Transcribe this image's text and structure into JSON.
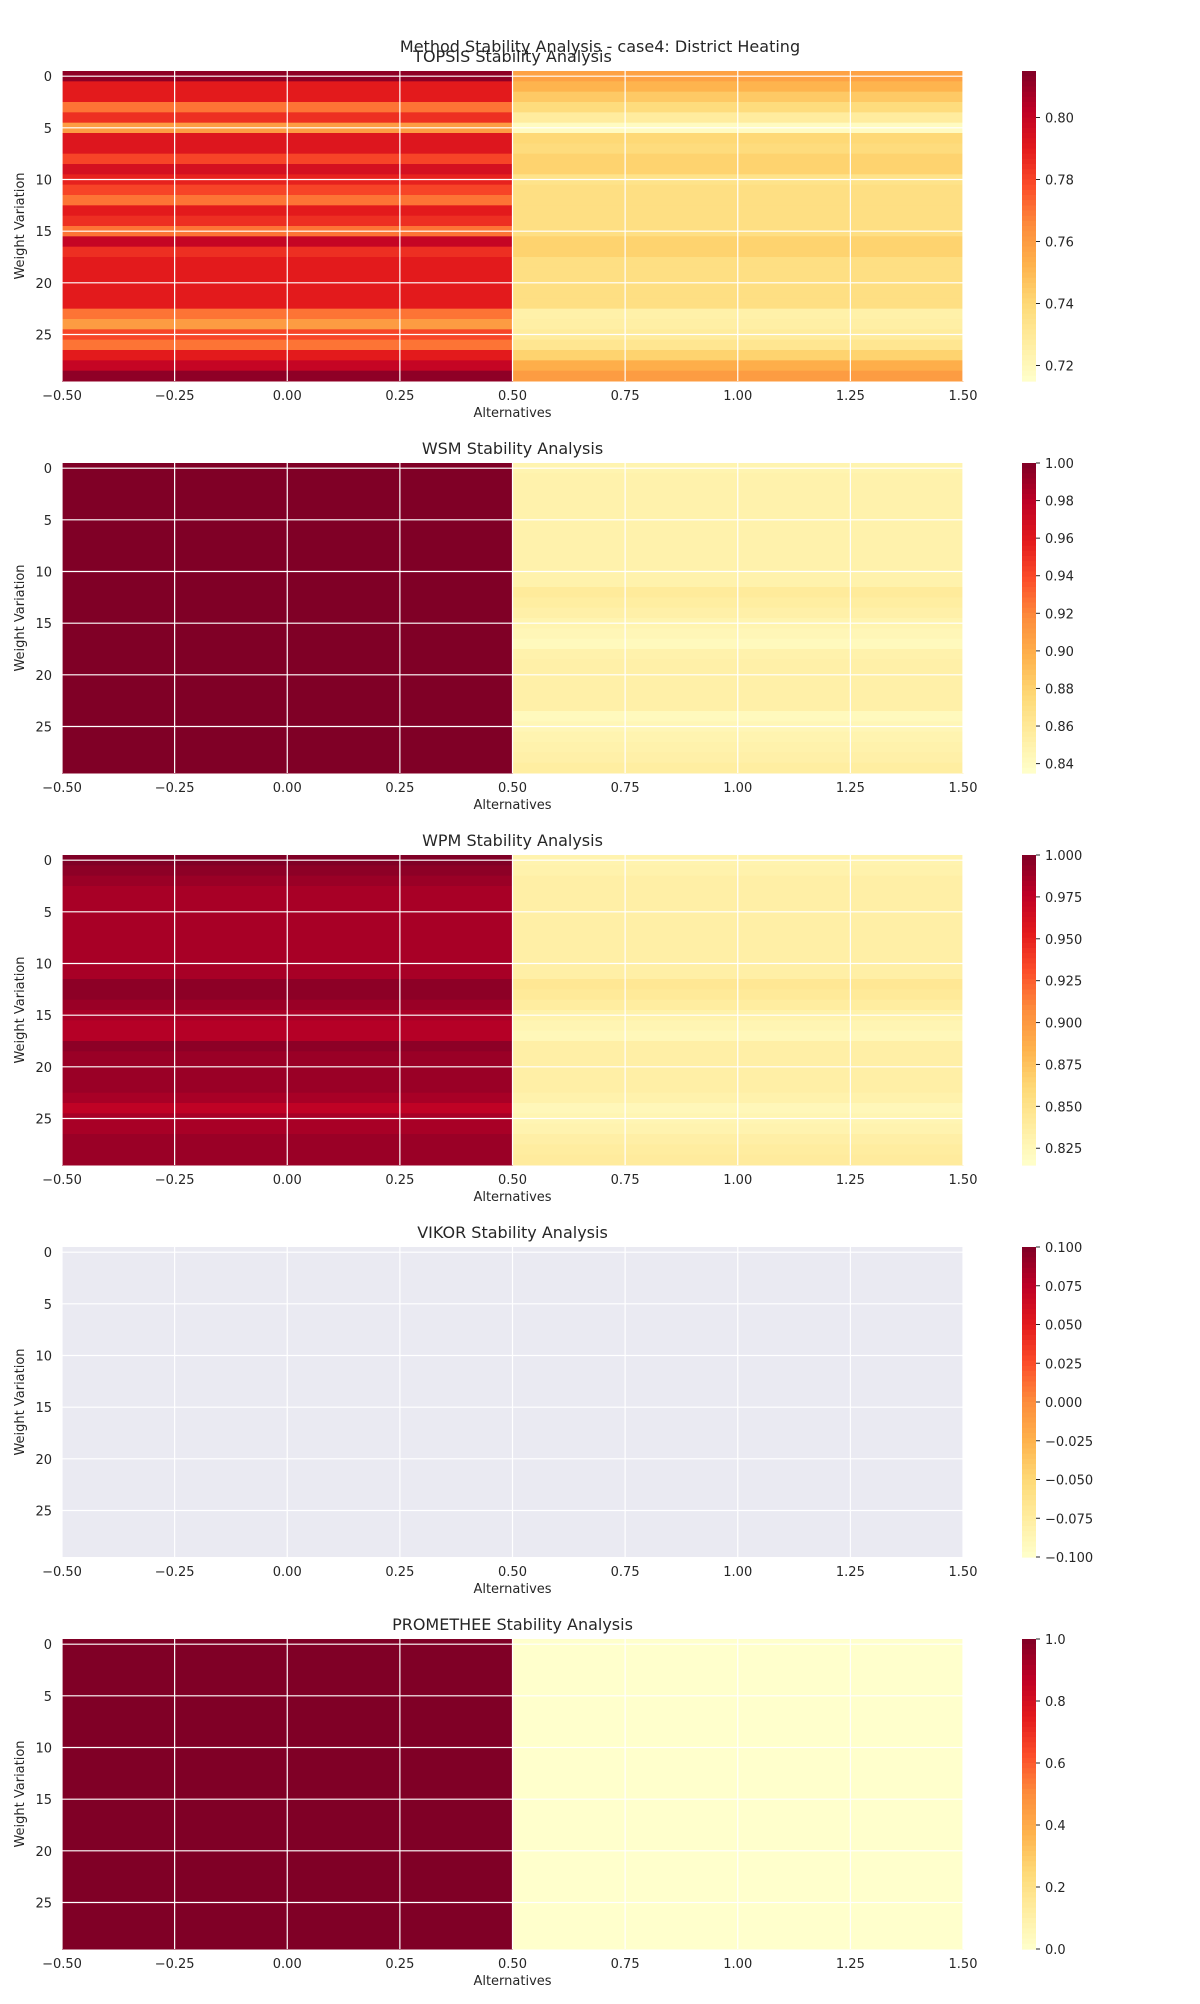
{
  "figure": {
    "suptitle": "Method Stability Analysis - case4: District Heating"
  },
  "chart_data": [
    {
      "type": "heatmap",
      "title": "TOPSIS Stability Analysis",
      "xlabel": "Alternatives",
      "ylabel": "Weight Variation",
      "xlim": [
        -0.5,
        1.5
      ],
      "ylim": [
        29.5,
        -0.5
      ],
      "xticks": [
        "−0.50",
        "−0.25",
        "0.00",
        "0.25",
        "0.50",
        "0.75",
        "1.00",
        "1.25",
        "1.50"
      ],
      "yticks": [
        "0",
        "5",
        "10",
        "15",
        "20",
        "25"
      ],
      "grid": true,
      "colormap": "YlOrRd",
      "colorbar": {
        "range": [
          0.715,
          0.815
        ],
        "ticks": [
          0.72,
          0.74,
          0.76,
          0.78,
          0.8
        ],
        "tick_labels": [
          "0.72",
          "0.74",
          "0.76",
          "0.78",
          "0.80"
        ]
      },
      "values": [
        [
          0.812,
          0.758
        ],
        [
          0.79,
          0.752
        ],
        [
          0.79,
          0.745
        ],
        [
          0.77,
          0.738
        ],
        [
          0.785,
          0.728
        ],
        [
          0.76,
          0.718
        ],
        [
          0.792,
          0.74
        ],
        [
          0.792,
          0.738
        ],
        [
          0.78,
          0.742
        ],
        [
          0.795,
          0.742
        ],
        [
          0.788,
          0.734
        ],
        [
          0.78,
          0.736
        ],
        [
          0.77,
          0.736
        ],
        [
          0.79,
          0.736
        ],
        [
          0.785,
          0.736
        ],
        [
          0.77,
          0.736
        ],
        [
          0.8,
          0.742
        ],
        [
          0.785,
          0.742
        ],
        [
          0.79,
          0.736
        ],
        [
          0.79,
          0.736
        ],
        [
          0.79,
          0.736
        ],
        [
          0.79,
          0.736
        ],
        [
          0.79,
          0.736
        ],
        [
          0.77,
          0.725
        ],
        [
          0.76,
          0.726
        ],
        [
          0.78,
          0.728
        ],
        [
          0.77,
          0.732
        ],
        [
          0.79,
          0.742
        ],
        [
          0.8,
          0.754
        ],
        [
          0.812,
          0.76
        ]
      ]
    },
    {
      "type": "heatmap",
      "title": "WSM Stability Analysis",
      "xlabel": "Alternatives",
      "ylabel": "Weight Variation",
      "xlim": [
        -0.5,
        1.5
      ],
      "ylim": [
        29.5,
        -0.5
      ],
      "xticks": [
        "−0.50",
        "−0.25",
        "0.00",
        "0.25",
        "0.50",
        "0.75",
        "1.00",
        "1.25",
        "1.50"
      ],
      "yticks": [
        "0",
        "5",
        "10",
        "15",
        "20",
        "25"
      ],
      "grid": true,
      "colormap": "YlOrRd",
      "colorbar": {
        "range": [
          0.835,
          1.0
        ],
        "ticks": [
          0.84,
          0.86,
          0.88,
          0.9,
          0.92,
          0.94,
          0.96,
          0.98,
          1.0
        ],
        "tick_labels": [
          "0.84",
          "0.86",
          "0.88",
          "0.90",
          "0.92",
          "0.94",
          "0.96",
          "0.98",
          "1.00"
        ]
      },
      "values": [
        [
          1.0,
          0.848
        ],
        [
          1.0,
          0.85
        ],
        [
          1.0,
          0.85
        ],
        [
          1.0,
          0.85
        ],
        [
          1.0,
          0.85
        ],
        [
          1.0,
          0.85
        ],
        [
          1.0,
          0.85
        ],
        [
          1.0,
          0.85
        ],
        [
          1.0,
          0.85
        ],
        [
          1.0,
          0.85
        ],
        [
          1.0,
          0.85
        ],
        [
          1.0,
          0.85
        ],
        [
          1.0,
          0.858
        ],
        [
          1.0,
          0.855
        ],
        [
          1.0,
          0.852
        ],
        [
          1.0,
          0.848
        ],
        [
          1.0,
          0.845
        ],
        [
          1.0,
          0.842
        ],
        [
          1.0,
          0.85
        ],
        [
          1.0,
          0.852
        ],
        [
          1.0,
          0.852
        ],
        [
          1.0,
          0.852
        ],
        [
          1.0,
          0.852
        ],
        [
          1.0,
          0.852
        ],
        [
          1.0,
          0.842
        ],
        [
          1.0,
          0.845
        ],
        [
          1.0,
          0.848
        ],
        [
          1.0,
          0.85
        ],
        [
          1.0,
          0.852
        ],
        [
          1.0,
          0.855
        ]
      ]
    },
    {
      "type": "heatmap",
      "title": "WPM Stability Analysis",
      "xlabel": "Alternatives",
      "ylabel": "Weight Variation",
      "xlim": [
        -0.5,
        1.5
      ],
      "ylim": [
        29.5,
        -0.5
      ],
      "xticks": [
        "−0.50",
        "−0.25",
        "0.00",
        "0.25",
        "0.50",
        "0.75",
        "1.00",
        "1.25",
        "1.50"
      ],
      "yticks": [
        "0",
        "5",
        "10",
        "15",
        "20",
        "25"
      ],
      "grid": true,
      "colormap": "YlOrRd",
      "colorbar": {
        "range": [
          0.815,
          1.0
        ],
        "ticks": [
          0.825,
          0.85,
          0.875,
          0.9,
          0.925,
          0.95,
          0.975,
          1.0
        ],
        "tick_labels": [
          "0.825",
          "0.850",
          "0.875",
          "0.900",
          "0.925",
          "0.950",
          "0.975",
          "1.000"
        ]
      },
      "values": [
        [
          1.0,
          0.83
        ],
        [
          0.995,
          0.832
        ],
        [
          0.99,
          0.835
        ],
        [
          0.985,
          0.835
        ],
        [
          0.985,
          0.835
        ],
        [
          0.985,
          0.835
        ],
        [
          0.985,
          0.835
        ],
        [
          0.985,
          0.835
        ],
        [
          0.985,
          0.835
        ],
        [
          0.985,
          0.835
        ],
        [
          0.985,
          0.835
        ],
        [
          0.985,
          0.835
        ],
        [
          0.995,
          0.845
        ],
        [
          0.995,
          0.842
        ],
        [
          0.99,
          0.838
        ],
        [
          0.985,
          0.832
        ],
        [
          0.98,
          0.828
        ],
        [
          0.98,
          0.825
        ],
        [
          0.995,
          0.835
        ],
        [
          0.99,
          0.835
        ],
        [
          0.99,
          0.835
        ],
        [
          0.99,
          0.835
        ],
        [
          0.99,
          0.835
        ],
        [
          0.985,
          0.832
        ],
        [
          0.975,
          0.825
        ],
        [
          0.985,
          0.828
        ],
        [
          0.985,
          0.83
        ],
        [
          0.99,
          0.835
        ],
        [
          0.99,
          0.838
        ],
        [
          0.99,
          0.84
        ]
      ]
    },
    {
      "type": "heatmap",
      "title": "VIKOR Stability Analysis",
      "xlabel": "Alternatives",
      "ylabel": "Weight Variation",
      "xlim": [
        -0.5,
        1.5
      ],
      "ylim": [
        29.5,
        -0.5
      ],
      "xticks": [
        "−0.50",
        "−0.25",
        "0.00",
        "0.25",
        "0.50",
        "0.75",
        "1.00",
        "1.25",
        "1.50"
      ],
      "yticks": [
        "0",
        "5",
        "10",
        "15",
        "20",
        "25"
      ],
      "grid": true,
      "colormap": "YlOrRd",
      "colorbar": {
        "range": [
          -0.1,
          0.1
        ],
        "ticks": [
          -0.1,
          -0.075,
          -0.05,
          -0.025,
          0.0,
          0.025,
          0.05,
          0.075,
          0.1
        ],
        "tick_labels": [
          "−0.100",
          "−0.075",
          "−0.050",
          "−0.025",
          "0.000",
          "0.025",
          "0.050",
          "0.075",
          "0.100"
        ]
      },
      "values": []
    },
    {
      "type": "heatmap",
      "title": "PROMETHEE Stability Analysis",
      "xlabel": "Alternatives",
      "ylabel": "Weight Variation",
      "xlim": [
        -0.5,
        1.5
      ],
      "ylim": [
        29.5,
        -0.5
      ],
      "xticks": [
        "−0.50",
        "−0.25",
        "0.00",
        "0.25",
        "0.50",
        "0.75",
        "1.00",
        "1.25",
        "1.50"
      ],
      "yticks": [
        "0",
        "5",
        "10",
        "15",
        "20",
        "25"
      ],
      "grid": true,
      "colormap": "YlOrRd",
      "colorbar": {
        "range": [
          0.0,
          1.0
        ],
        "ticks": [
          0.0,
          0.2,
          0.4,
          0.6,
          0.8,
          1.0
        ],
        "tick_labels": [
          "0.0",
          "0.2",
          "0.4",
          "0.6",
          "0.8",
          "1.0"
        ]
      },
      "values": [
        [
          1.0,
          0.0
        ],
        [
          1.0,
          0.0
        ],
        [
          1.0,
          0.0
        ],
        [
          1.0,
          0.0
        ],
        [
          1.0,
          0.0
        ],
        [
          1.0,
          0.0
        ],
        [
          1.0,
          0.0
        ],
        [
          1.0,
          0.0
        ],
        [
          1.0,
          0.0
        ],
        [
          1.0,
          0.0
        ],
        [
          1.0,
          0.0
        ],
        [
          1.0,
          0.0
        ],
        [
          1.0,
          0.0
        ],
        [
          1.0,
          0.0
        ],
        [
          1.0,
          0.0
        ],
        [
          1.0,
          0.0
        ],
        [
          1.0,
          0.0
        ],
        [
          1.0,
          0.0
        ],
        [
          1.0,
          0.0
        ],
        [
          1.0,
          0.0
        ],
        [
          1.0,
          0.0
        ],
        [
          1.0,
          0.0
        ],
        [
          1.0,
          0.0
        ],
        [
          1.0,
          0.0
        ],
        [
          1.0,
          0.0
        ],
        [
          1.0,
          0.0
        ],
        [
          1.0,
          0.0
        ],
        [
          1.0,
          0.0
        ],
        [
          1.0,
          0.0
        ],
        [
          1.0,
          0.0
        ]
      ]
    }
  ]
}
